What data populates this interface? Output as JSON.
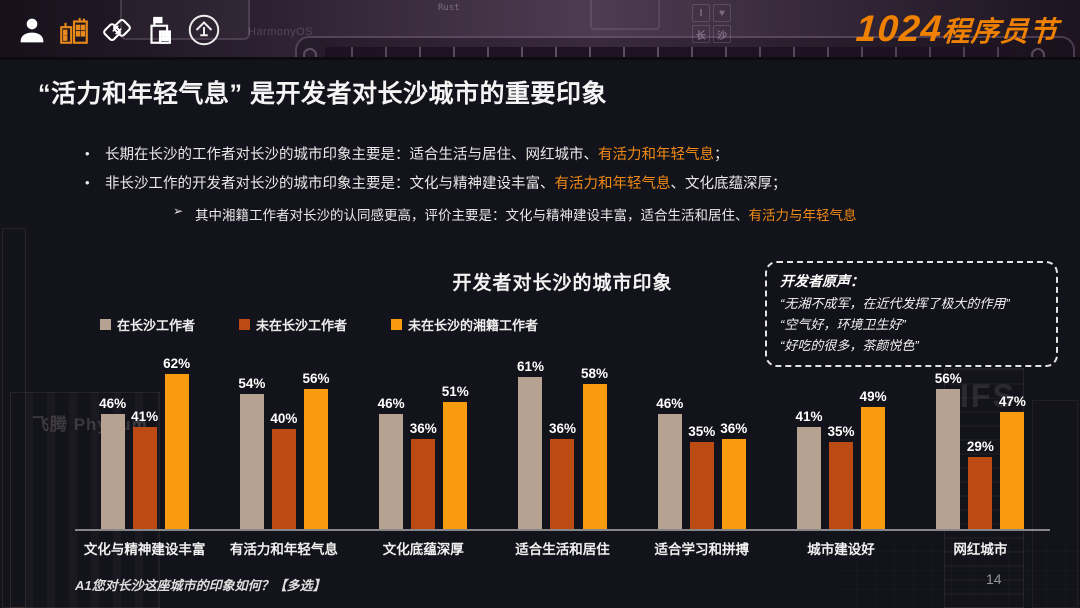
{
  "header": {
    "logo_number": "1024",
    "logo_suffix": "程序员节",
    "icons": [
      "user-icon",
      "city-buildings-icon",
      "handshake-icon",
      "office-building-icon",
      "enterprise-icon"
    ],
    "decor_labels": {
      "harmonyos": "HarmonyOS",
      "rust": "Rust",
      "tiles": [
        "I",
        "♥",
        "长",
        "沙"
      ]
    }
  },
  "title": "“活力和年轻气息” 是开发者对长沙城市的重要印象",
  "bullets": [
    {
      "parts": [
        {
          "text": "长期在长沙的工作者对长沙的城市印象主要是：适合生活与居住、网红城市、"
        },
        {
          "text": "有活力和年轻气息",
          "highlight": true
        },
        {
          "text": "；"
        }
      ]
    },
    {
      "parts": [
        {
          "text": "非长沙工作的开发者对长沙的城市印象主要是：文化与精神建设丰富、"
        },
        {
          "text": "有活力和年轻气息",
          "highlight": true
        },
        {
          "text": "、文化底蕴深厚；"
        }
      ]
    }
  ],
  "sub_bullet": {
    "arrow": "➢",
    "parts": [
      {
        "text": "其中湘籍工作者对长沙的认同感更高，评价主要是：文化与精神建设丰富，适合生活和居住、"
      },
      {
        "text": "有活力与年轻气息",
        "highlight": true
      }
    ]
  },
  "quote_box": {
    "title": "开发者原声：",
    "lines": [
      "“无湘不成军，在近代发挥了极大的作用”",
      "“空气好，环境卫生好”",
      "“好吃的很多，茶颜悦色”"
    ]
  },
  "chart_data": {
    "type": "bar",
    "title": "开发者对长沙的城市印象",
    "categories": [
      "文化与精神建设丰富",
      "有活力和年轻气息",
      "文化底蕴深厚",
      "适合生活和居住",
      "适合学习和拼搏",
      "城市建设好",
      "网红城市"
    ],
    "series": [
      {
        "name": "在长沙工作者",
        "color": "#b7a292",
        "values": [
          46,
          54,
          46,
          61,
          46,
          41,
          56
        ]
      },
      {
        "name": "未在长沙工作者",
        "color": "#bb4a13",
        "values": [
          41,
          40,
          36,
          36,
          35,
          35,
          29
        ]
      },
      {
        "name": "未在长沙的湘籍工作者",
        "color": "#f99b0e",
        "values": [
          62,
          56,
          51,
          58,
          36,
          49,
          47
        ]
      }
    ],
    "value_suffix": "%",
    "ylim": [
      0,
      70
    ],
    "grid": false,
    "legend_position": "top-left"
  },
  "footnote": "A1您对长沙这座城市的印象如何？【多选】",
  "page_number": "14",
  "background_decor": {
    "phytium": "飞腾 Phytium",
    "ifs": "IFS"
  },
  "colors": {
    "accent_orange": "#ef8100",
    "highlight_orange": "#f28a14",
    "axis": "#87878a",
    "slide_background": "#13131b"
  }
}
